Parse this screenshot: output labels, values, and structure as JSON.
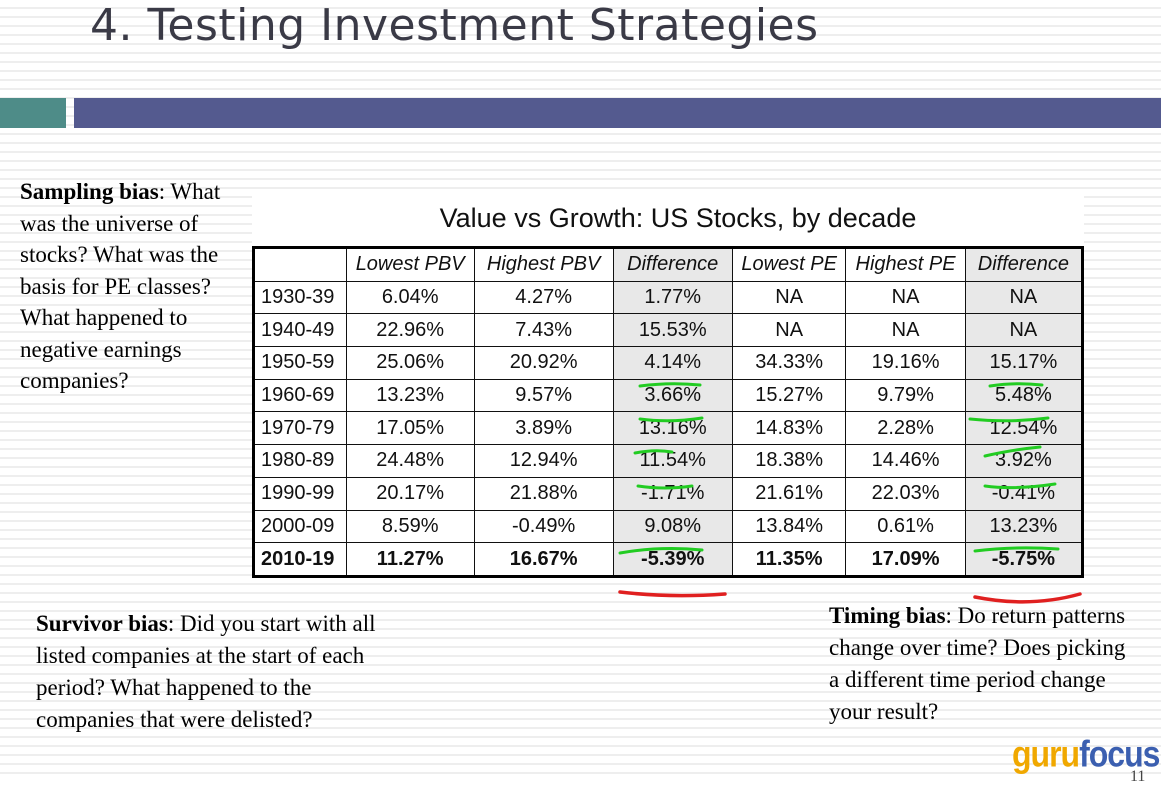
{
  "slide": {
    "title": "4. Testing Investment Strategies",
    "page_number": "11"
  },
  "notes": {
    "sampling": {
      "label": "Sampling bias",
      "text": ": What was the universe of stocks? What was the basis for PE classes? What happened to negative earnings companies?"
    },
    "survivor": {
      "label": "Survivor bias",
      "text": ": Did you start with all listed companies at the start of each period? What happened to the companies that were delisted?"
    },
    "timing": {
      "label": "Timing bias",
      "text": ": Do return patterns change over time? Does picking a different time period change your result?"
    }
  },
  "table": {
    "title": "Value vs Growth: US Stocks, by decade",
    "headers": [
      "",
      "Lowest PBV",
      "Highest PBV",
      "Difference",
      "Lowest PE",
      "Highest PE",
      "Difference"
    ],
    "rows": [
      [
        "1930-39",
        "6.04%",
        "4.27%",
        "1.77%",
        "NA",
        "NA",
        "NA"
      ],
      [
        "1940-49",
        "22.96%",
        "7.43%",
        "15.53%",
        "NA",
        "NA",
        "NA"
      ],
      [
        "1950-59",
        "25.06%",
        "20.92%",
        "4.14%",
        "34.33%",
        "19.16%",
        "15.17%"
      ],
      [
        "1960-69",
        "13.23%",
        "9.57%",
        "3.66%",
        "15.27%",
        "9.79%",
        "5.48%"
      ],
      [
        "1970-79",
        "17.05%",
        "3.89%",
        "13.16%",
        "14.83%",
        "2.28%",
        "12.54%"
      ],
      [
        "1980-89",
        "24.48%",
        "12.94%",
        "11.54%",
        "18.38%",
        "14.46%",
        "3.92%"
      ],
      [
        "1990-99",
        "20.17%",
        "21.88%",
        "-1.71%",
        "21.61%",
        "22.03%",
        "-0.41%"
      ],
      [
        "2000-09",
        "8.59%",
        "-0.49%",
        "9.08%",
        "13.84%",
        "0.61%",
        "13.23%"
      ],
      [
        "2010-19",
        "11.27%",
        "16.67%",
        "-5.39%",
        "11.35%",
        "17.09%",
        "-5.75%"
      ]
    ]
  },
  "logo": {
    "part1": "guru",
    "part2": "focus"
  },
  "colors": {
    "teal_bar": "#4e8c88",
    "blue_bar": "#545a8f",
    "green_marks": "#22cc22",
    "red_marks": "#e02020",
    "logo_orange": "#f0a800",
    "logo_blue": "#3b5fb0"
  }
}
